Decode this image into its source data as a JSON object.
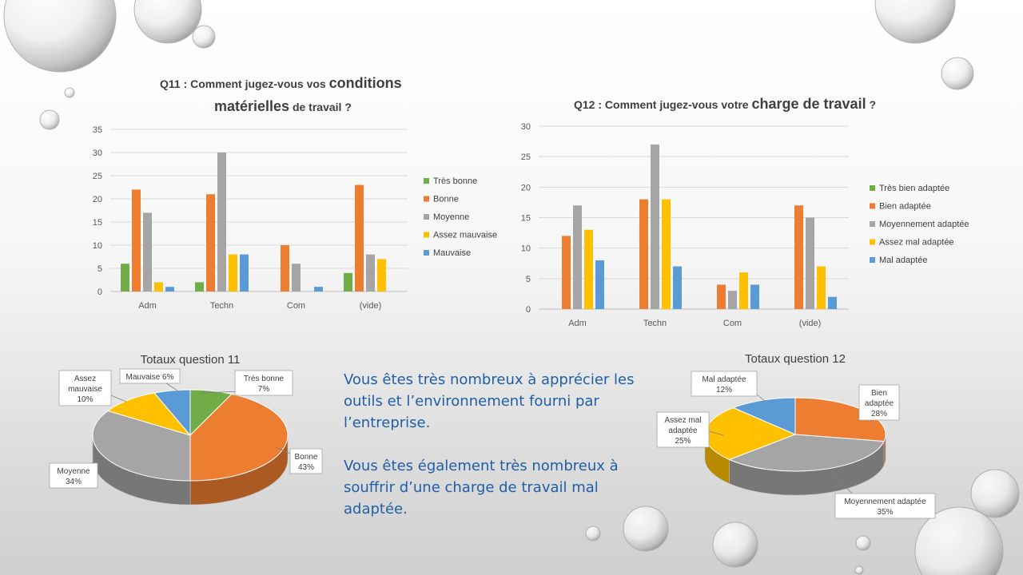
{
  "chart_data": [
    {
      "type": "bar",
      "title_parts": [
        "Q11 : ",
        "Comment jugez-vous vos ",
        "conditions",
        "matérielles",
        " de travail ?"
      ],
      "categories": [
        "Adm",
        "Techn",
        "Com",
        "(vide)"
      ],
      "ylim": [
        0,
        35
      ],
      "yticks": [
        0,
        5,
        10,
        15,
        20,
        25,
        30,
        35
      ],
      "grid": true,
      "legend": "right",
      "series": [
        {
          "name": "Très bonne",
          "color": "#70ad47",
          "values": [
            6,
            2,
            0,
            4
          ]
        },
        {
          "name": "Bonne",
          "color": "#ed7d31",
          "values": [
            22,
            21,
            10,
            23
          ]
        },
        {
          "name": "Moyenne",
          "color": "#a5a5a5",
          "values": [
            17,
            30,
            6,
            8
          ]
        },
        {
          "name": "Assez mauvaise",
          "color": "#ffc000",
          "values": [
            2,
            8,
            0,
            7
          ]
        },
        {
          "name": "Mauvaise",
          "color": "#5b9bd5",
          "values": [
            1,
            8,
            1,
            0
          ]
        }
      ]
    },
    {
      "type": "bar",
      "title_parts": [
        "Q12 : ",
        "Comment jugez-vous votre ",
        "charge de travail",
        " ?"
      ],
      "categories": [
        "Adm",
        "Techn",
        "Com",
        "(vide)"
      ],
      "ylim": [
        0,
        30
      ],
      "yticks": [
        0,
        5,
        10,
        15,
        20,
        25,
        30
      ],
      "grid": true,
      "legend": "right",
      "series": [
        {
          "name": "Très bien adaptée",
          "color": "#70ad47",
          "values": [
            0,
            0,
            0,
            0
          ]
        },
        {
          "name": "Bien adaptée",
          "color": "#ed7d31",
          "values": [
            12,
            18,
            4,
            17
          ]
        },
        {
          "name": "Moyennement adaptée",
          "color": "#a5a5a5",
          "values": [
            17,
            27,
            3,
            15
          ]
        },
        {
          "name": "Assez mal adaptée",
          "color": "#ffc000",
          "values": [
            13,
            18,
            6,
            7
          ]
        },
        {
          "name": "Mal adaptée",
          "color": "#5b9bd5",
          "values": [
            8,
            7,
            4,
            2
          ]
        }
      ]
    },
    {
      "type": "pie",
      "title": "Totaux question 11",
      "slices": [
        {
          "label_lines": [
            "Très bonne",
            "7%"
          ],
          "value": 7,
          "color": "#70ad47"
        },
        {
          "label_lines": [
            "Bonne",
            "43%"
          ],
          "value": 43,
          "color": "#ed7d31"
        },
        {
          "label_lines": [
            "Moyenne",
            "34%"
          ],
          "value": 34,
          "color": "#a5a5a5"
        },
        {
          "label_lines": [
            "Assez",
            "mauvaise",
            "10%"
          ],
          "value": 10,
          "color": "#ffc000"
        },
        {
          "label_lines": [
            "Mauvaise 6%"
          ],
          "value": 6,
          "color": "#5b9bd5"
        }
      ]
    },
    {
      "type": "pie",
      "title": "Totaux question 12",
      "slices": [
        {
          "label_lines": [
            "Bien",
            "adaptée",
            "28%"
          ],
          "value": 28,
          "color": "#ed7d31"
        },
        {
          "label_lines": [
            "Moyennement adaptée",
            "35%"
          ],
          "value": 35,
          "color": "#a5a5a5"
        },
        {
          "label_lines": [
            "Assez mal",
            "adaptée",
            "25%"
          ],
          "value": 25,
          "color": "#ffc000"
        },
        {
          "label_lines": [
            "Mal adaptée",
            "12%"
          ],
          "value": 12,
          "color": "#5b9bd5"
        }
      ]
    }
  ],
  "message": {
    "paragraph_1": "Vous êtes très nombreux à apprécier les outils et l’environnement fourni par l’entreprise.",
    "paragraph_2": "Vous êtes également très nombreux à souffrir d’une charge de travail mal adaptée."
  }
}
